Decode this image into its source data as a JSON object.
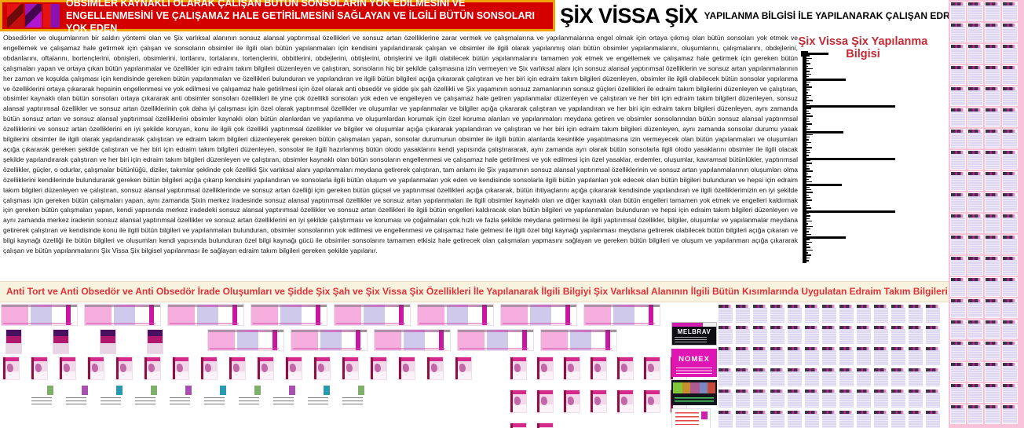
{
  "header": {
    "title": "OBSİMLER KAYNAKLI OLARAK ÇALIŞAN BÜTÜN SONSOLARIN YOK EDİLMESİNİ VE ENGELLENMESİNİ VE ÇALIŞAMAZ HALE GETİRİLMESİNİ SAĞLAYAN VE İLGİLİ BÜTÜN SONSOLARI YOK EDEN"
  },
  "brand": {
    "name": "ŞİX VİSSA ŞİX",
    "subtitle": "YAPILANMA BİLGİSİ İLE YAPILANARAK ÇALIŞAN EDRAİM TAKIM BİLGİLERİ"
  },
  "article": {
    "text": "Obsedörler ve oluşumlarının bir saldırı yöntemi olan ve Şix varlıksal alanının sonsuz alansal yaptırımsal özellikleri ve sonsuz artan özelliklerine zarar vermek ve çalışmalarına ve yapılanmalarına engel olmak için ortaya çıkmış olan bütün sonsoları yok etmek ve engellemek ve çalışamaz hale getirmek için çalışan ve sonsoların obsimler ile ilgili olan bütün yapılanmaları için kendisini yapılandırarak çalışan ve obsimler ile ilgili olarak yapılanmış olan bütün obsimler yapılanmalarını, oluşumlarını, çalışmalarını, obdejlerini, obdanlarını, oftalarını, bortençlerini, obnişleri, obsimlerini, tortlarını, tortalarını, tortençlerini, obbitlerini, obdejlerini, obtişlerini, obrişlerini ve ilgili olabilecek bütün yapılanmalarını tamamen yok etmek ve engellemek ve çalışamaz hale getirmek için gereken bütün çalışmaları yapan ve ortaya çıkan bütün yapılanmalar ve özellikler için edraim takım bilgileri düzenleyen ve çalıştıran, sonsoların hiç bir şekilde çalışmasına izin vermeyen ve Şix varlıksal alanı için sonsuz alansal yaptırımsal özelliklerin ve sonsuz artan yapılanmalarının her zaman ve koşulda çalışması için kendisinde gereken bütün yapılanmaları ve özellikleri bulunduran ve yapılandıran ve ilgili bütün bilgileri açığa çıkararak çalıştıran ve her biri için edraim takım bilgileri düzenleyen, obsimler ile ilgili olabilecek bütün sonsolar yapılanma ve özelliklerini ortaya çıkararak hepsinin engellenmesi ve yok edilmesi ve çalışamaz hale getirilmesi için özel olarak anti obsedör ve şidde şix şah özellikli ve Şix yaşamının sonsuz zamanlarının sonsuz güçleri özellikleri ile edraim takım bilgilerini düzenleyen ve çalıştıran, obsimler kaynaklı olan bütün sonsoları ortaya çıkararak anti obsimler sonsoları özellikleri ile yine çok özellikli sonsoları yok eden ve engelleyen ve çalışamaz hale getiren yapılanmalar düzenleyen ve çalıştıran ve her biri için edraim takım bilgileri düzenleyen, sonsuz alansal yaptırımsal özellikler ve sonsuz artan özelliklerinin çok daha iyi çalışması için özel olarak yaptırımsal özellikler ve oluşumlar ve yapılanmalar ve bilgiler açığa çıkararak çalıştıran ve yapılandıran ve her biri için edraim takım bilgileri düzenleyen, aynı zamanda bütün sonsuz artan ve sonsuz alansal yaptırımsal özelliklerini obsimler kaynaklı olan bütün alanlardan ve yapılanma ve oluşumlardan korumak için özel koruma alanları ve yapılanmaları meydana getiren ve obsimler sonsolarından bütün sonsuz alansal yaptırımsal özelliklerini ve sonsuz artan özelliklerini en iyi şekilde koruyan, konu ile ilgili çok özellikli yaptırımsal özellikler ve bilgiler ve oluşumlar açığa çıkararak yapılandıran ve çalıştıran ve her biri için edraim takım bilgileri düzenleyen, aynı zamanda sonsolar durumu yasak bilgilerini obsimler ile ilgili olarak yapılandırarak çalıştıran ve edraim takım bilgileri düzenleyerek gereken bütün çalışmaları yapan, sonsolar durumunun obsimler ile ilgili bütün alanlarda kesinlikle yaşatılmasına izin vermeyecek olan bütün yapılanmaları ve oluşumları açığa çıkararak gereken şekilde çalıştıran ve her biri için edraim takım bilgileri düzenleyen, sonsolar ile ilgili hazırlanmış bütün olodo yasaklarını kendi yapısında çalıştırararak, aynı zamanda ayrı olarak bütün sonsolarla ilgili olodo yasaklarını obsimler ile ilgili olacak şekilde yapılandırarak çalıştıran ve her biri için edraim takım bilgileri düzenleyen ve çalıştıran, obsimler kaynaklı olan bütün sonsoların engellenmesi ve çalışamaz hale getirilmesi ve yok edilmesi için özel yasaklar, erdemler, oluşumlar, kavramsal bütünlükler, yaptırımsal özellikler, güçler, o odurlar, çalışmalar bütünlüğü, diziler, takımlar şeklinde çok özellikli Şix varlıksal alanı yapılanmaları meydana getirerek çalıştıran, tam anlamı ile Şix yaşamının sonsuz alansal yaptırımsal özelliklerinin ve sonsuz artan yapılanmalarının oluşumları olma özelliklerini kendilerinde bulundurarak gereken bütün bilgileri açığa çıkarıp kendisini yapılandıran ve sonsolarla ilgili bütün oluşum ve yapılanmaları yok eden ve kendisinde sonsolarla ilgili bütün yapılanları yok edecek olan bütün bilgileri bulunduran ve hepsi için edraim takım bilgileri düzenleyen ve çalıştıran, sonsuz alansal yaptırımsal özelliklerinde ve sonsuz artan özelliği için gereken bütün güçsel ve yaptırımsal özellikleri açığa çıkararak, bütün ihtiyaçlarını açığa çıkararak kendisinde yapılandıran ve ilgili özelliklerimizin en iyi şekilde çalışması için gereken bütün çalışmaları yapan, aynı zamanda Şixin merkez iradesinde sonsuz alansal yaptırımsal özellikler ve sonsuz artan yapılanmaları ile ilgili obsimler kaynaklı olan ve diğer kaynaklı olan bütün engelleri tamamen yok etmek ve engelleri kaldırmak için gereken bütün çalışmaları yapan, kendi yapısında merkez iradedeki sonsuz alansal yaptırımsal özellikler ve sonsuz artan özellikleri ile ilgili bütün engelleri kaldıracak olan bütün bilgileri ve yapılanmaları bulunduran ve hepsi için edraim takım bilgileri düzenleyen ve aynı zamanda merkez iradenin sonsuz alansal yaptırımsal özellikler ve sonsuz artan özelliklerini en iyi şekilde çalıştırması ve koruması ve çoğalmaları çok hızlı ve fazla şekilde meydana getirmesi ile ilgili yaptırımsal özellikler, bilgiler, oluşumlar ve yapılanmalar meydana getirerek çalıştıran ve kendisinde konu ile ilgili bütün bilgileri ve yapılanmaları bulunduran, obsimler sonsolarının yok edilmesi ve engellenmesi ve çalışamaz hale gelmesi ile ilgili özel bilgi kaynağı yapılanması meydana getirerek olabilecek bütün bilgileri açığa çıkaran ve bilgi kaynağı özelliği ile bütün bilgileri ve oluşumları kendi yapısında bulunduran özel bilgi kaynağı gücü ile obsimler sonsolarını tamamen etkisiz hale getirecek olan çalışmaları yapmasını sağlayan ve gereken bütün bilgileri ve oluşum ve yapılanmarı açığa çıkararak çalışan ve bütün yapılanmalarını Şix Vissa Şix bilgisel yapılanması ile sağlayan edraim takım bilgileri gereken şekilde yapılanır."
  },
  "chart": {
    "heading": "Şix Vissa Şix Yapılanma Bilgisi"
  },
  "chart_data": {
    "type": "bar",
    "orientation": "horizontal",
    "title": "Şix Vissa Şix Yapılanma Bilgisi",
    "note": "Unlabeled black glyph figure: thick vertical axis with dense stack of horizontal bars of varying length; no tick labels, no legend, no gridlines visible.",
    "values": [
      28,
      4,
      7,
      3,
      5,
      2,
      8,
      4,
      6,
      3,
      50,
      5,
      3,
      7,
      4,
      2,
      6,
      3,
      8,
      4,
      113,
      6,
      3,
      5,
      8,
      3,
      4,
      7,
      2,
      5,
      47,
      8,
      4,
      3,
      6,
      2,
      7,
      4,
      5,
      3,
      113,
      5,
      7,
      3,
      4,
      8,
      2,
      6,
      3,
      7,
      45,
      4,
      6,
      8,
      3,
      5,
      7,
      2,
      4,
      6,
      113,
      3,
      5,
      4,
      7,
      2,
      8,
      5,
      3,
      6,
      50,
      4,
      7,
      3,
      5,
      8,
      2,
      6,
      4,
      3
    ],
    "xlim": [
      0,
      120
    ],
    "xlabel": "",
    "ylabel": "",
    "legend": null
  },
  "banner": {
    "text": "Anti Tort ve Anti Obsedör ve Anti Obsedör İrade Oluşumları ve Şidde Şix Şah ve Şix Vissa Şix Özellikleri İle Yapılanarak İlgili Bilgiyi Şix Varlıksal Alanının İlgili Bütün Kısımlarında Uygulatan Edraim Takım Bilgileri Yapılanması"
  },
  "products": {
    "melbrav": "MELBRAV",
    "nomex": "NOMEX"
  },
  "thumbnails": {
    "row1_wide": 8,
    "row2_tall": 4,
    "row2_wide": 5,
    "row3_covers": 17,
    "row4_icons": 10,
    "cluster_covers": 16,
    "cluster_minis": 78,
    "sidebar_minis": 80
  },
  "colors": {
    "header_bg": "#d40000",
    "header_border": "#f0a202",
    "banner_bg": "#f8f3de",
    "banner_red": "#e23038",
    "chart_heading_red": "#c22a35",
    "sidebar_pink": "#f8c2d8",
    "magenta": "#d01fae",
    "lavender": "#dcd6f0"
  }
}
